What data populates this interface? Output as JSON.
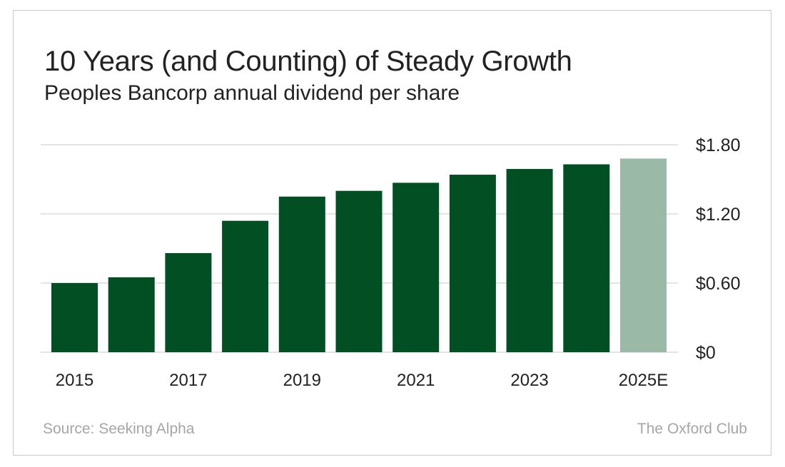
{
  "chart_data": {
    "type": "bar",
    "title": "10 Years (and Counting) of Steady Growth",
    "subtitle": "Peoples Bancorp annual dividend per share",
    "categories": [
      "2015",
      "2016",
      "2017",
      "2018",
      "2019",
      "2020",
      "2021",
      "2022",
      "2023",
      "2024",
      "2025E"
    ],
    "x_tick_labels": [
      "2015",
      "2017",
      "2019",
      "2021",
      "2023",
      "2025E"
    ],
    "values": [
      0.6,
      0.65,
      0.86,
      1.14,
      1.35,
      1.4,
      1.47,
      1.54,
      1.59,
      1.63,
      1.68
    ],
    "estimated": [
      false,
      false,
      false,
      false,
      false,
      false,
      false,
      false,
      false,
      false,
      true
    ],
    "ylim": [
      0,
      1.8
    ],
    "yticks": [
      0,
      0.6,
      1.2,
      1.8
    ],
    "ytick_labels": [
      "$0",
      "$0.60",
      "$1.20",
      "$1.80"
    ],
    "y_axis_position": "right",
    "grid": true,
    "colors": {
      "actual": "#034f24",
      "estimate": "#9ab9a6",
      "grid": "#c8c8c8"
    },
    "source": "Source: Seeking Alpha",
    "credit": "The Oxford Club"
  }
}
